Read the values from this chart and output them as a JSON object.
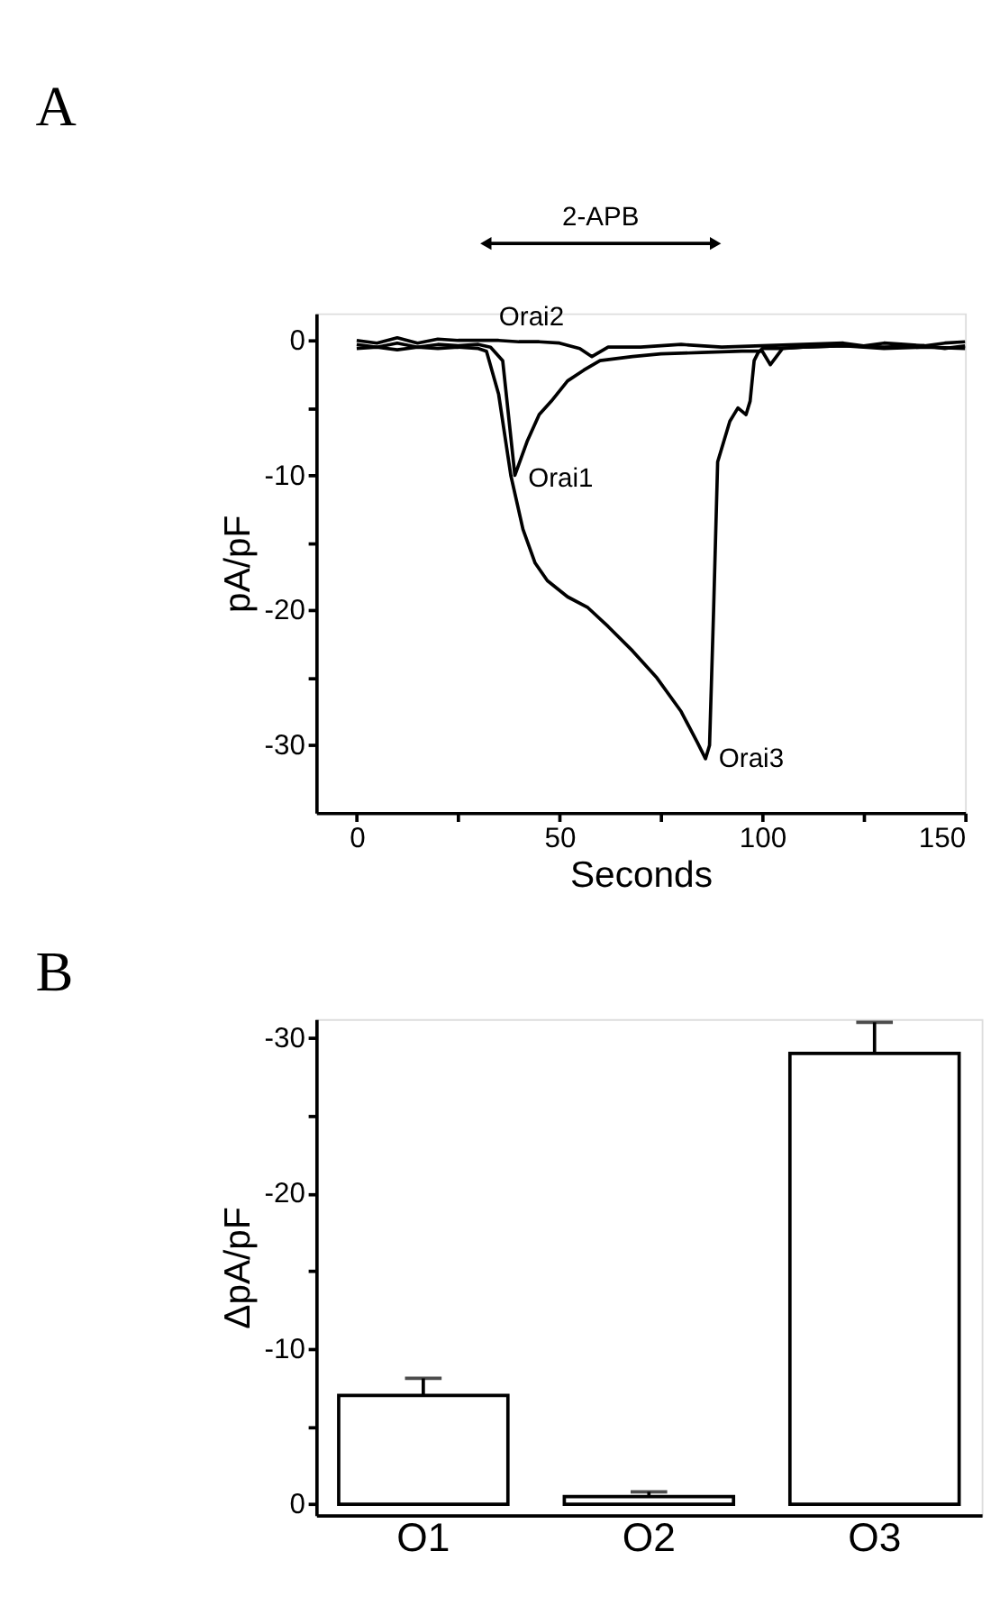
{
  "chart_data": [
    {
      "type": "line",
      "title": "A",
      "xlabel": "Seconds",
      "ylabel": "pA/pF",
      "xlim": [
        -10,
        150
      ],
      "xticks": [
        0,
        {
          "value": 25,
          "label": null
        },
        50,
        {
          "value": 75,
          "label": null
        },
        100,
        {
          "value": 125,
          "label": null
        },
        150
      ],
      "ylim": [
        -35,
        2
      ],
      "yticks": [
        {
          "value": -30,
          "label": "-30"
        },
        {
          "value": -25,
          "label": null
        },
        {
          "value": -20,
          "label": "-20"
        },
        {
          "value": -15,
          "label": null
        },
        {
          "value": -10,
          "label": "-10"
        },
        {
          "value": -5,
          "label": null
        },
        0
      ],
      "grid": false,
      "line_style": "solid",
      "marker": "none",
      "series": [
        {
          "color": "#000000",
          "x": [
            0,
            5,
            10,
            15,
            20,
            25,
            30,
            33,
            36,
            39,
            42,
            45,
            48,
            52,
            56,
            60,
            68,
            75,
            85,
            95,
            100,
            102,
            105,
            110,
            120,
            130,
            140,
            145,
            150
          ],
          "values": [
            -0.3,
            -0.5,
            -0.2,
            -0.5,
            -0.3,
            -0.4,
            -0.3,
            -0.5,
            -1.5,
            -10,
            -7.5,
            -5.5,
            -4.5,
            -3,
            -2.2,
            -1.5,
            -1.2,
            -1,
            -0.9,
            -0.8,
            -0.8,
            -1.8,
            -0.6,
            -0.5,
            -0.4,
            -0.5,
            -0.4,
            -0.6,
            -0.4
          ]
        },
        {
          "color": "#000000",
          "x": [
            0,
            5,
            10,
            15,
            20,
            25,
            30,
            35,
            40,
            45,
            50,
            55,
            58,
            62,
            70,
            80,
            90,
            100,
            110,
            120,
            125,
            130,
            135,
            140,
            145,
            150
          ],
          "values": [
            0,
            -0.2,
            0.2,
            -0.2,
            0.1,
            0,
            0,
            0,
            -0.1,
            -0.1,
            -0.2,
            -0.6,
            -1.2,
            -0.5,
            -0.5,
            -0.3,
            -0.5,
            -0.4,
            -0.3,
            -0.2,
            -0.4,
            -0.2,
            -0.3,
            -0.4,
            -0.2,
            -0.1
          ]
        },
        {
          "color": "#000000",
          "x": [
            0,
            5,
            10,
            15,
            20,
            25,
            30,
            32,
            35,
            38,
            41,
            44,
            47,
            52,
            57,
            62,
            68,
            74,
            80,
            84,
            86,
            87,
            88,
            89,
            92,
            94,
            96,
            97,
            98,
            99,
            100,
            104,
            110,
            120,
            130,
            140,
            150
          ],
          "values": [
            -0.6,
            -0.5,
            -0.7,
            -0.5,
            -0.6,
            -0.5,
            -0.6,
            -0.8,
            -4,
            -10,
            -14,
            -16.5,
            -17.8,
            -19,
            -19.8,
            -21.2,
            -23,
            -25,
            -27.5,
            -29.8,
            -31,
            -30,
            -20,
            -9,
            -6,
            -5,
            -5.5,
            -4.5,
            -1.5,
            -0.9,
            -0.6,
            -0.6,
            -0.5,
            -0.4,
            -0.6,
            -0.5,
            -0.6
          ]
        }
      ],
      "annotations": [
        {
          "text": "Orai2",
          "x": 40,
          "y": 0
        },
        {
          "text": "Orai1",
          "x": 39,
          "y": -10
        },
        {
          "text": "Orai3",
          "x": 86,
          "y": -31
        },
        "2-APB"
      ]
    },
    {
      "type": "bar",
      "title": "B",
      "ylabel": "ΔpA/pF",
      "categories": [
        "O1",
        "O2",
        "O3"
      ],
      "values": [
        -7,
        -0.5,
        -29
      ],
      "errors": [
        [
          -8.1,
          -7
        ],
        [
          -0.8,
          -0.5
        ],
        [
          -31,
          -29
        ]
      ],
      "colors": [
        "#ffffff",
        "#ffffff",
        "#ffffff"
      ],
      "ylim": [
        0.7,
        -31.2
      ],
      "yticks": [
        0,
        {
          "value": -5,
          "label": null
        },
        -10,
        {
          "value": -15,
          "label": null
        },
        -20,
        {
          "value": -25,
          "label": null
        },
        -30
      ],
      "grid": false
    }
  ]
}
